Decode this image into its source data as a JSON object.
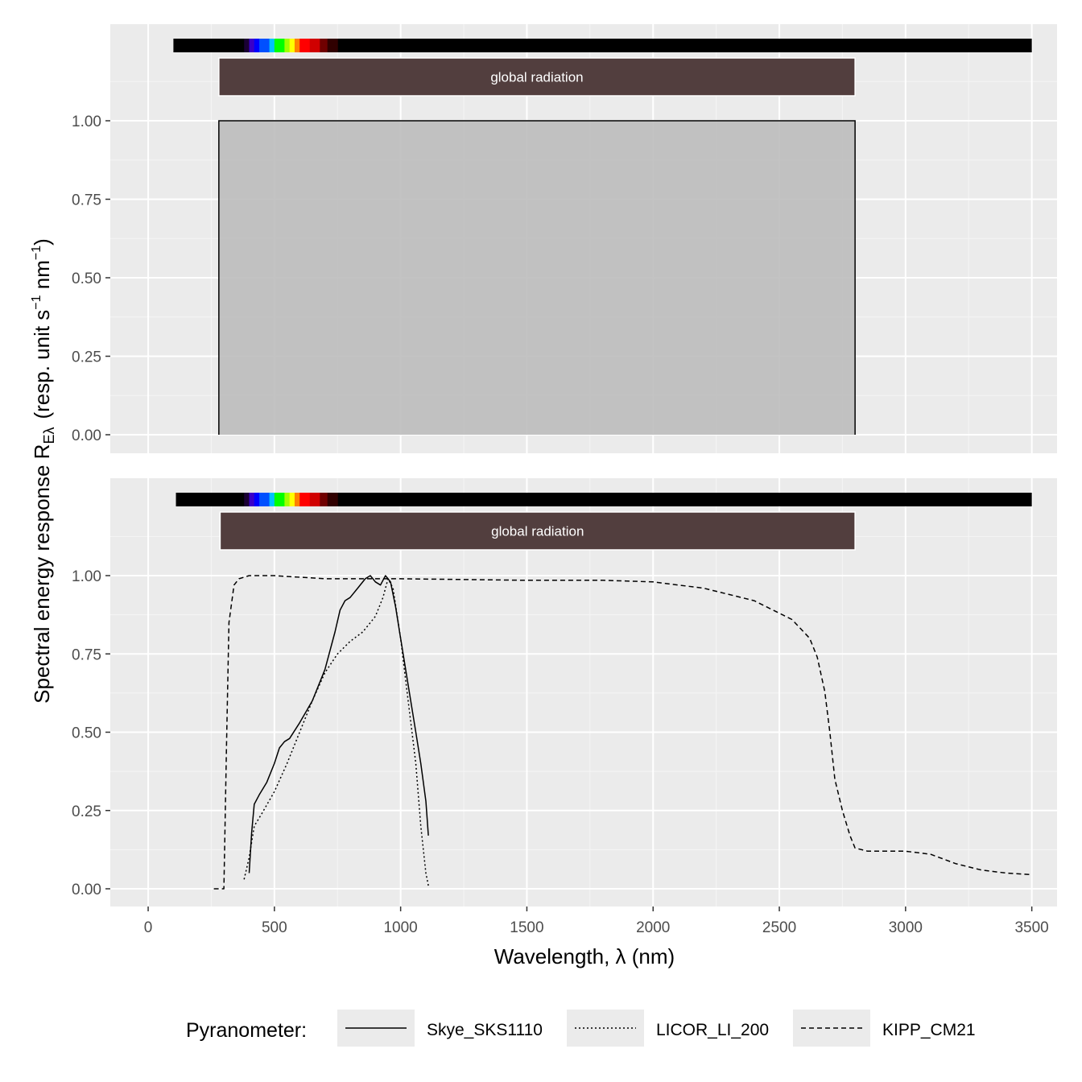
{
  "chart_data": {
    "type": "line",
    "xlabel": "Wavelength, λ (nm)",
    "ylabel": {
      "main": "Spectral energy response R",
      "subscript": "Eλ",
      "units_open": "(resp. unit s",
      "sup1": "−1",
      "units_mid": " nm",
      "sup2": "−1",
      "units_close": ")"
    },
    "xlim": [
      -150,
      3600
    ],
    "xticks": [
      0,
      500,
      1000,
      1500,
      2000,
      2500,
      3000,
      3500
    ],
    "xtick_labels": [
      "0",
      "500",
      "1000",
      "1500",
      "2000",
      "2500",
      "3000",
      "3500"
    ],
    "yticks": [
      0,
      0.25,
      0.5,
      0.75,
      1.0
    ],
    "ytick_labels": [
      "0.00",
      "0.25",
      "0.50",
      "0.75",
      "1.00"
    ],
    "legend": {
      "title": "Pyranometer:",
      "position": "bottom",
      "entries": [
        "Skye_SKS1110",
        "LICOR_LI_200",
        "KIPP_CM21"
      ]
    },
    "panels": [
      {
        "name": "top",
        "band": {
          "label": "global radiation",
          "x_start": 280,
          "x_end": 2800,
          "color": "#523e3e"
        },
        "color_bar": {
          "x_start": 100,
          "x_end": 3500
        },
        "area": {
          "x_start": 280,
          "x_end": 2800,
          "y": 1.0,
          "fill": "#bdbdbd"
        }
      },
      {
        "name": "bottom",
        "band": {
          "label": "global radiation",
          "x_start": 285,
          "x_end": 2800,
          "color": "#523e3e"
        },
        "color_bar": {
          "x_start": 110,
          "x_end": 3500
        },
        "series": [
          {
            "name": "Skye_SKS1110",
            "dash": "solid",
            "x": [
              400,
              410,
              420,
              440,
              470,
              500,
              520,
              540,
              560,
              600,
              650,
              700,
              740,
              760,
              780,
              800,
              830,
              860,
              880,
              900,
              920,
              940,
              960,
              980,
              1000,
              1020,
              1040,
              1060,
              1080,
              1100,
              1110
            ],
            "y": [
              0.05,
              0.18,
              0.27,
              0.3,
              0.34,
              0.4,
              0.45,
              0.47,
              0.48,
              0.53,
              0.6,
              0.7,
              0.82,
              0.89,
              0.92,
              0.93,
              0.96,
              0.99,
              1.0,
              0.98,
              0.97,
              1.0,
              0.98,
              0.9,
              0.8,
              0.7,
              0.6,
              0.5,
              0.4,
              0.28,
              0.17
            ]
          },
          {
            "name": "LICOR_LI_200",
            "dash": "dotted",
            "x": [
              380,
              400,
              420,
              450,
              500,
              550,
              600,
              650,
              700,
              750,
              800,
              850,
              900,
              930,
              950,
              970,
              1000,
              1030,
              1060,
              1080,
              1100,
              1110
            ],
            "y": [
              0.03,
              0.1,
              0.2,
              0.24,
              0.31,
              0.4,
              0.5,
              0.6,
              0.69,
              0.75,
              0.79,
              0.82,
              0.87,
              0.93,
              0.99,
              0.96,
              0.8,
              0.6,
              0.4,
              0.2,
              0.05,
              0.01
            ]
          },
          {
            "name": "KIPP_CM21",
            "dash": "dashed",
            "x": [
              260,
              300,
              310,
              320,
              340,
              360,
              400,
              500,
              700,
              1000,
              1500,
              1800,
              2000,
              2200,
              2400,
              2550,
              2620,
              2650,
              2680,
              2700,
              2720,
              2750,
              2780,
              2800,
              2850,
              3000,
              3100,
              3200,
              3300,
              3400,
              3500
            ],
            "y": [
              0.0,
              0.0,
              0.45,
              0.85,
              0.97,
              0.99,
              1.0,
              1.0,
              0.99,
              0.99,
              0.985,
              0.985,
              0.98,
              0.96,
              0.92,
              0.86,
              0.8,
              0.74,
              0.63,
              0.5,
              0.35,
              0.25,
              0.17,
              0.13,
              0.12,
              0.12,
              0.11,
              0.08,
              0.06,
              0.05,
              0.045
            ]
          }
        ]
      }
    ]
  }
}
